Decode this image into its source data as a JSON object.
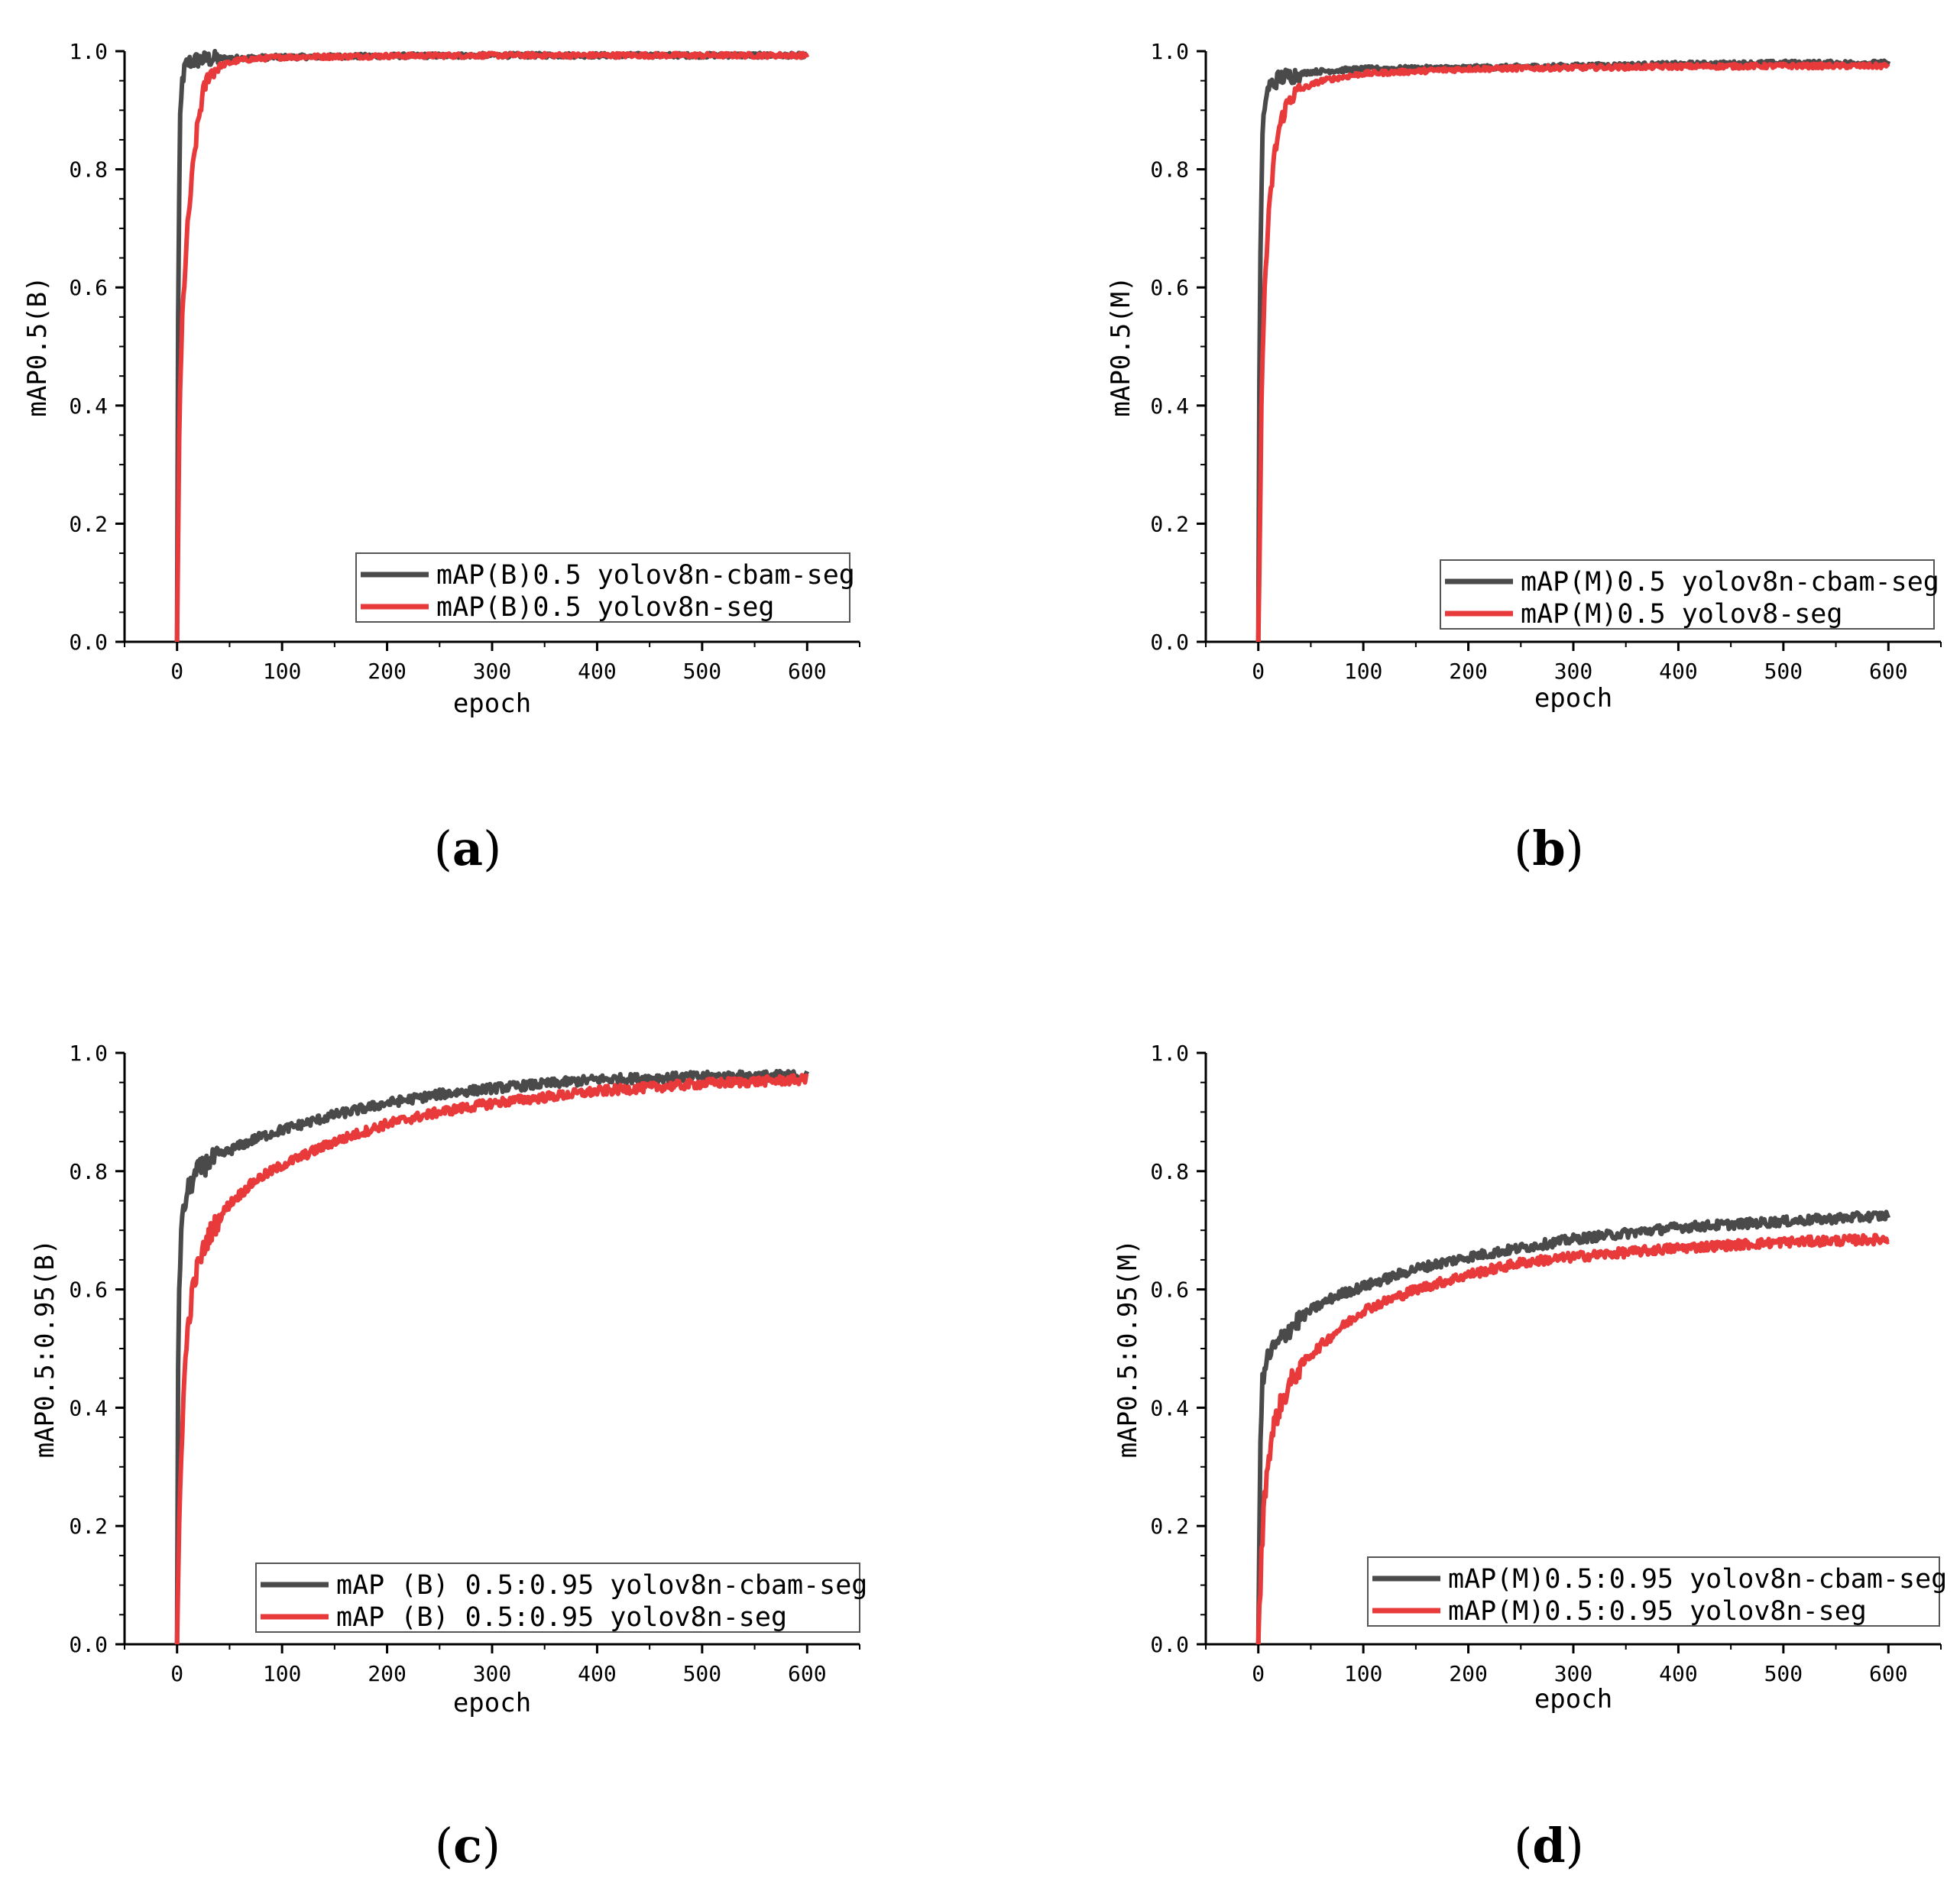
{
  "colors": {
    "cbam": "#4a4a4a",
    "base": "#e8393b",
    "axis": "#000000"
  },
  "chart_data": [
    {
      "panel": "a",
      "caption": {
        "open": "(",
        "letter": "a",
        "close": ")"
      },
      "type": "line",
      "xlabel": "epoch",
      "ylabel": "mAP0.5(B)",
      "xlim": [
        -50,
        650
      ],
      "ylim": [
        0,
        1
      ],
      "xticks": [
        0,
        100,
        200,
        300,
        400,
        500,
        600
      ],
      "yticks": [
        "0.0",
        "0.2",
        "0.4",
        "0.6",
        "0.8",
        "1.0"
      ],
      "legend_position": "bottom-right",
      "series": [
        {
          "name": "mAP(B)0.5 yolov8n-cbam-seg",
          "color_key": "cbam",
          "final": 0.992,
          "tau": 1.5,
          "x": [
            0,
            1,
            2,
            3,
            5,
            8,
            12,
            20,
            40,
            100,
            200,
            300,
            400,
            500,
            600
          ],
          "y": [
            0.0,
            0.55,
            0.75,
            0.88,
            0.95,
            0.975,
            0.982,
            0.985,
            0.988,
            0.99,
            0.992,
            0.993,
            0.993,
            0.993,
            0.993
          ]
        },
        {
          "name": "mAP(B)0.5 yolov8n-seg",
          "color_key": "base",
          "final": 0.992,
          "tau": 8,
          "x": [
            0,
            2,
            5,
            10,
            15,
            20,
            25,
            30,
            40,
            60,
            100,
            200,
            300,
            400,
            500,
            600
          ],
          "y": [
            0.0,
            0.35,
            0.55,
            0.7,
            0.8,
            0.88,
            0.93,
            0.96,
            0.975,
            0.985,
            0.99,
            0.992,
            0.993,
            0.993,
            0.993,
            0.993
          ]
        }
      ]
    },
    {
      "panel": "b",
      "caption": {
        "open": "(",
        "letter": "b",
        "close": ")"
      },
      "type": "line",
      "xlabel": "epoch",
      "ylabel": "mAP0.5(M)",
      "xlim": [
        -50,
        650
      ],
      "ylim": [
        0,
        1
      ],
      "xticks": [
        0,
        100,
        200,
        300,
        400,
        500,
        600
      ],
      "yticks": [
        "0.0",
        "0.2",
        "0.4",
        "0.6",
        "0.8",
        "1.0"
      ],
      "legend_position": "bottom-right",
      "series": [
        {
          "name": "mAP(M)0.5 yolov8n-cbam-seg",
          "color_key": "cbam",
          "final": 0.98,
          "tau": 2.5,
          "x": [
            0,
            1,
            2,
            4,
            6,
            10,
            20,
            50,
            100,
            200,
            300,
            400,
            500,
            600
          ],
          "y": [
            0.0,
            0.45,
            0.65,
            0.85,
            0.91,
            0.94,
            0.955,
            0.965,
            0.97,
            0.972,
            0.975,
            0.978,
            0.98,
            0.98
          ]
        },
        {
          "name": "mAP(M)0.5 yolov8-seg",
          "color_key": "base",
          "final": 0.975,
          "tau": 9,
          "x": [
            0,
            3,
            6,
            10,
            15,
            20,
            25,
            30,
            40,
            60,
            100,
            200,
            300,
            400,
            500,
            600
          ],
          "y": [
            0.0,
            0.4,
            0.6,
            0.72,
            0.82,
            0.87,
            0.9,
            0.92,
            0.935,
            0.95,
            0.962,
            0.97,
            0.972,
            0.974,
            0.975,
            0.975
          ]
        }
      ]
    },
    {
      "panel": "c",
      "caption": {
        "open": "(",
        "letter": "c",
        "close": ")"
      },
      "type": "line",
      "xlabel": "epoch",
      "ylabel": "mAP0.5:0.95(B)",
      "xlim": [
        -50,
        650
      ],
      "ylim": [
        0,
        1
      ],
      "xticks": [
        0,
        100,
        200,
        300,
        400,
        500,
        600
      ],
      "yticks": [
        "0.0",
        "0.2",
        "0.4",
        "0.6",
        "0.8",
        "1.0"
      ],
      "legend_position": "bottom-right",
      "series": [
        {
          "name": "mAP (B) 0.5:0.95 yolov8n-cbam-seg",
          "color_key": "cbam",
          "final": 0.96,
          "tau": 3,
          "x": [
            0,
            1,
            2,
            4,
            7,
            10,
            15,
            20,
            30,
            50,
            75,
            100,
            150,
            200,
            250,
            300,
            400,
            500,
            600
          ],
          "y": [
            0.0,
            0.45,
            0.6,
            0.7,
            0.74,
            0.765,
            0.785,
            0.8,
            0.815,
            0.835,
            0.855,
            0.87,
            0.895,
            0.915,
            0.93,
            0.94,
            0.955,
            0.96,
            0.962
          ]
        },
        {
          "name": "mAP (B) 0.5:0.95 yolov8n-seg",
          "color_key": "base",
          "final": 0.955,
          "tau": 10,
          "x": [
            0,
            2,
            4,
            7,
            10,
            15,
            20,
            30,
            40,
            50,
            75,
            100,
            150,
            200,
            250,
            300,
            400,
            500,
            600
          ],
          "y": [
            0.0,
            0.2,
            0.33,
            0.45,
            0.53,
            0.6,
            0.64,
            0.69,
            0.72,
            0.745,
            0.785,
            0.81,
            0.85,
            0.88,
            0.9,
            0.915,
            0.935,
            0.948,
            0.955
          ]
        }
      ]
    },
    {
      "panel": "d",
      "caption": {
        "open": "(",
        "letter": "d",
        "close": ")"
      },
      "type": "line",
      "xlabel": "epoch",
      "ylabel": "mAP0.5:0.95(M)",
      "xlim": [
        -50,
        650
      ],
      "ylim": [
        0,
        1
      ],
      "xticks": [
        0,
        100,
        200,
        300,
        400,
        500,
        600
      ],
      "yticks": [
        "0.0",
        "0.2",
        "0.4",
        "0.6",
        "0.8",
        "1.0"
      ],
      "legend_position": "bottom-right",
      "series": [
        {
          "name": "mAP(M)0.5:0.95 yolov8n-cbam-seg",
          "color_key": "cbam",
          "final": 0.725,
          "tau": 3,
          "x": [
            0,
            1,
            2,
            4,
            7,
            10,
            20,
            30,
            50,
            75,
            100,
            150,
            200,
            250,
            300,
            400,
            500,
            600
          ],
          "y": [
            0.0,
            0.2,
            0.35,
            0.44,
            0.47,
            0.49,
            0.51,
            0.535,
            0.565,
            0.59,
            0.605,
            0.635,
            0.655,
            0.67,
            0.685,
            0.705,
            0.715,
            0.725
          ]
        },
        {
          "name": "mAP(M)0.5:0.95 yolov8n-seg",
          "color_key": "base",
          "final": 0.685,
          "tau": 10,
          "x": [
            0,
            3,
            6,
            10,
            15,
            20,
            30,
            40,
            50,
            75,
            100,
            150,
            200,
            250,
            300,
            400,
            500,
            600
          ],
          "y": [
            0.0,
            0.15,
            0.25,
            0.32,
            0.37,
            0.4,
            0.44,
            0.47,
            0.49,
            0.53,
            0.565,
            0.6,
            0.625,
            0.645,
            0.655,
            0.67,
            0.68,
            0.685
          ]
        }
      ]
    }
  ]
}
